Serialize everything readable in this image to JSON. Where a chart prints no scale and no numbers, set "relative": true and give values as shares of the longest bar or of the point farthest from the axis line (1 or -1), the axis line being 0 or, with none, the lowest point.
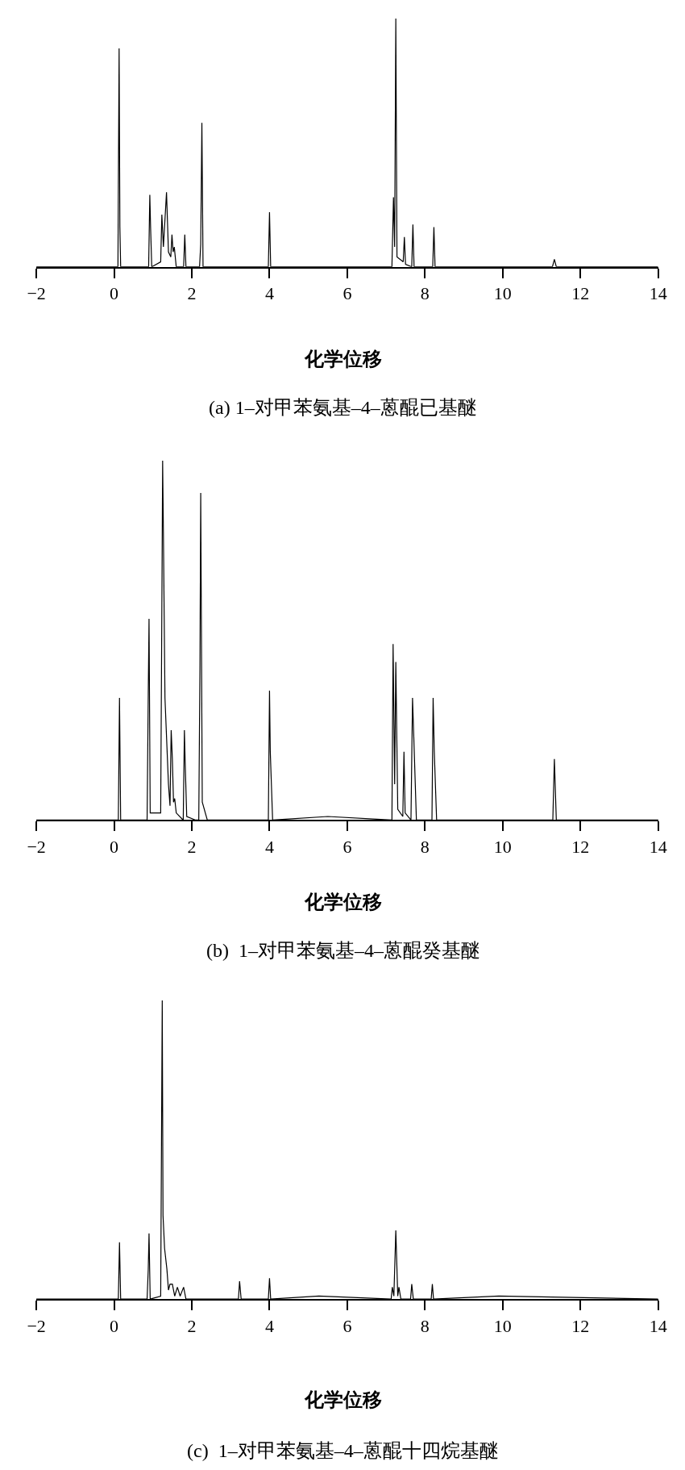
{
  "chart_data": [
    {
      "type": "line",
      "relative": true,
      "title": "(a) 1–对甲苯氨基–4–蒽醌已基醚",
      "xlabel": "化学位移",
      "xlim": [
        -2,
        14
      ],
      "xticks": [
        -2,
        0,
        2,
        4,
        6,
        8,
        10,
        12,
        14
      ],
      "series": [
        {
          "color": "#000000",
          "x": [
            -2,
            0.1,
            0.13,
            0.15,
            0.17,
            0.89,
            0.92,
            0.94,
            0.97,
            1.2,
            1.23,
            1.27,
            1.35,
            1.4,
            1.46,
            1.49,
            1.52,
            1.55,
            1.6,
            1.79,
            1.82,
            1.85,
            2.2,
            2.23,
            2.26,
            2.29,
            3.97,
            4.0,
            4.03,
            7.15,
            7.19,
            7.22,
            7.25,
            7.28,
            7.44,
            7.47,
            7.5,
            7.66,
            7.69,
            7.72,
            8.2,
            8.23,
            8.26,
            11.28,
            11.33,
            11.38,
            14
          ],
          "values": [
            0,
            0,
            0.88,
            0.16,
            0,
            0,
            0.29,
            0.16,
            0,
            0.02,
            0.21,
            0.08,
            0.3,
            0.06,
            0.04,
            0.13,
            0.06,
            0.08,
            0,
            0,
            0.13,
            0,
            0,
            0.09,
            0.58,
            0,
            0,
            0.22,
            0,
            0,
            0.28,
            0.08,
            1.0,
            0.04,
            0.02,
            0.12,
            0.01,
            0,
            0.17,
            0,
            0,
            0.16,
            0,
            0,
            0.03,
            0,
            0
          ]
        }
      ]
    },
    {
      "type": "line",
      "relative": true,
      "title": "(b)  1–对甲苯氨基–4–蒽醌癸基醚",
      "xlabel": "化学位移",
      "xlim": [
        -2,
        14
      ],
      "xticks": [
        -2,
        0,
        2,
        4,
        6,
        8,
        10,
        12,
        14
      ],
      "series": [
        {
          "color": "#000000",
          "x": [
            -2,
            0.11,
            0.14,
            0.17,
            0.85,
            0.88,
            0.9,
            0.93,
            1.2,
            1.23,
            1.25,
            1.27,
            1.31,
            1.4,
            1.44,
            1.47,
            1.5,
            1.53,
            1.56,
            1.6,
            1.78,
            1.81,
            1.83,
            1.87,
            2.1,
            2.18,
            2.21,
            2.23,
            2.27,
            2.4,
            3.97,
            4.0,
            4.02,
            4.08,
            5.5,
            7.15,
            7.18,
            7.22,
            7.25,
            7.3,
            7.43,
            7.46,
            7.49,
            7.64,
            7.68,
            7.71,
            7.78,
            8.18,
            8.21,
            8.24,
            8.3,
            11.29,
            11.33,
            11.38,
            14
          ],
          "values": [
            0,
            0,
            0.34,
            0,
            0,
            0.35,
            0.56,
            0.02,
            0.02,
            0.59,
            1.0,
            0.8,
            0.34,
            0.1,
            0.04,
            0.25,
            0.17,
            0.05,
            0.06,
            0.02,
            0,
            0.25,
            0.16,
            0.01,
            0,
            0,
            0.42,
            0.91,
            0.05,
            0,
            0,
            0.36,
            0.19,
            0,
            0.01,
            0,
            0.49,
            0.1,
            0.44,
            0.03,
            0.01,
            0.19,
            0.02,
            0,
            0.34,
            0.24,
            0,
            0,
            0.34,
            0.19,
            0,
            0,
            0.17,
            0,
            0
          ]
        }
      ]
    },
    {
      "type": "line",
      "relative": true,
      "title": "(c)  1–对甲苯氨基–4–蒽醌十四烷基醚",
      "xlabel": "化学位移",
      "xlim": [
        -2,
        14
      ],
      "xticks": [
        -2,
        0,
        2,
        4,
        6,
        8,
        10,
        12,
        14
      ],
      "series": [
        {
          "color": "#000000",
          "x": [
            -2,
            0.11,
            0.14,
            0.17,
            0.85,
            0.88,
            0.9,
            0.93,
            1.2,
            1.24,
            1.26,
            1.3,
            1.36,
            1.4,
            1.44,
            1.5,
            1.56,
            1.63,
            1.7,
            1.79,
            1.85,
            3.2,
            3.23,
            3.27,
            3.97,
            4.0,
            4.03,
            5.27,
            7.13,
            7.16,
            7.2,
            7.25,
            7.3,
            7.33,
            7.38,
            7.63,
            7.66,
            7.7,
            8.16,
            8.19,
            8.22,
            9.9,
            14
          ],
          "values": [
            0,
            0,
            0.19,
            0,
            0,
            0.1,
            0.22,
            0,
            0.01,
            1.0,
            0.28,
            0.17,
            0.1,
            0.03,
            0.05,
            0.05,
            0.01,
            0.04,
            0.01,
            0.04,
            0,
            0,
            0.06,
            0,
            0,
            0.07,
            0,
            0.01,
            0,
            0.04,
            0.01,
            0.23,
            0.01,
            0.04,
            0,
            0,
            0.05,
            0,
            0,
            0.05,
            0,
            0.01,
            0
          ]
        }
      ]
    }
  ]
}
